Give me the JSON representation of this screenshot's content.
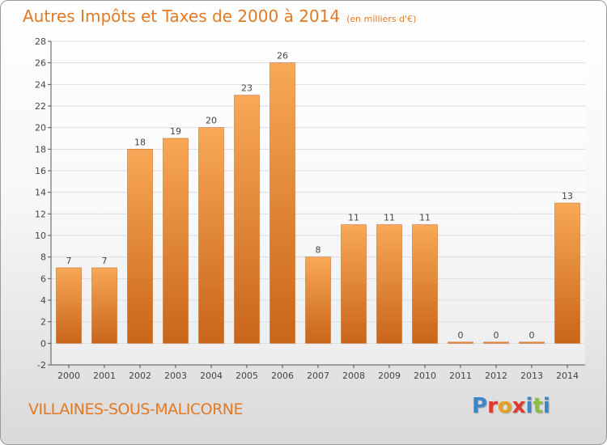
{
  "header": {
    "title": "Autres Impôts et Taxes de 2000 à 2014",
    "subtitle": "(en milliers d'€)"
  },
  "footer": {
    "town": "VILLAINES-SOUS-MALICORNE",
    "logo": [
      "P",
      "r",
      "o",
      "x",
      "i",
      "t",
      "i"
    ]
  },
  "colors": {
    "accent": "#e07a25",
    "bar_light": "#f8a857",
    "bar_dark": "#c9651a",
    "logo": [
      "#3a87c8",
      "#e03a2c",
      "#e8a020",
      "#e03a2c",
      "#3a87c8",
      "#8ac035",
      "#3a87c8"
    ]
  },
  "chart_data": {
    "type": "bar",
    "title": "Autres Impôts et Taxes de 2000 à 2014",
    "subtitle": "(en milliers d'€)",
    "xlabel": "",
    "ylabel": "",
    "categories": [
      "2000",
      "2001",
      "2002",
      "2003",
      "2004",
      "2005",
      "2006",
      "2007",
      "2008",
      "2009",
      "2010",
      "2011",
      "2012",
      "2013",
      "2014"
    ],
    "values": [
      7,
      7,
      18,
      19,
      20,
      23,
      26,
      8,
      11,
      11,
      11,
      0,
      0,
      0,
      13
    ],
    "data_labels": [
      "7",
      "7",
      "18",
      "19",
      "20",
      "23",
      "26",
      "8",
      "11",
      "11",
      "11",
      "0",
      "0",
      "0",
      "13"
    ],
    "ylim": [
      -2,
      28
    ],
    "yticks": [
      "-2",
      "0",
      "2",
      "4",
      "6",
      "8",
      "10",
      "12",
      "14",
      "16",
      "18",
      "20",
      "22",
      "24",
      "26",
      "28"
    ],
    "grid": true,
    "legend": "none"
  }
}
